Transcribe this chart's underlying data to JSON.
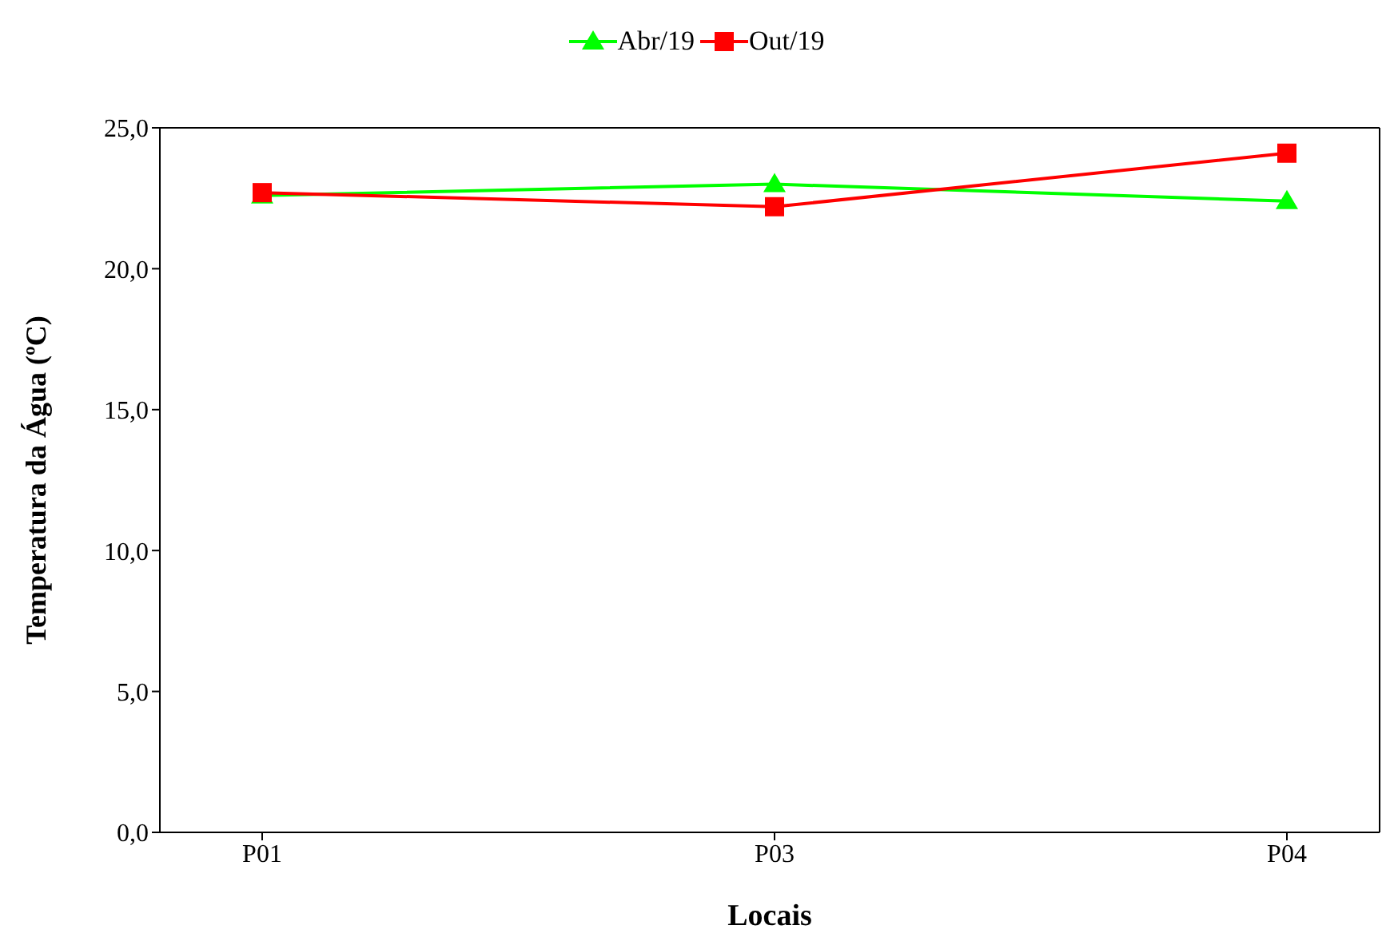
{
  "chart_data": {
    "type": "line",
    "xlabel": "Locais",
    "ylabel": "Temperatura da Água (ºC)",
    "categories": [
      "P01",
      "P03",
      "P04"
    ],
    "series": [
      {
        "name": "Abr/19",
        "color": "#00ff00",
        "marker": "triangle",
        "values": [
          22.6,
          23.0,
          22.4
        ]
      },
      {
        "name": "Out/19",
        "color": "#ff0000",
        "marker": "square",
        "values": [
          22.7,
          22.2,
          24.1
        ]
      }
    ],
    "ylim": [
      0,
      25
    ],
    "yticks": [
      {
        "value": 0,
        "label": "0,0"
      },
      {
        "value": 5,
        "label": "5,0"
      },
      {
        "value": 10,
        "label": "10,0"
      },
      {
        "value": 15,
        "label": "15,0"
      },
      {
        "value": 20,
        "label": "20,0"
      },
      {
        "value": 25,
        "label": "25,0"
      }
    ],
    "legend": "top",
    "grid": false,
    "line_style": "solid"
  }
}
